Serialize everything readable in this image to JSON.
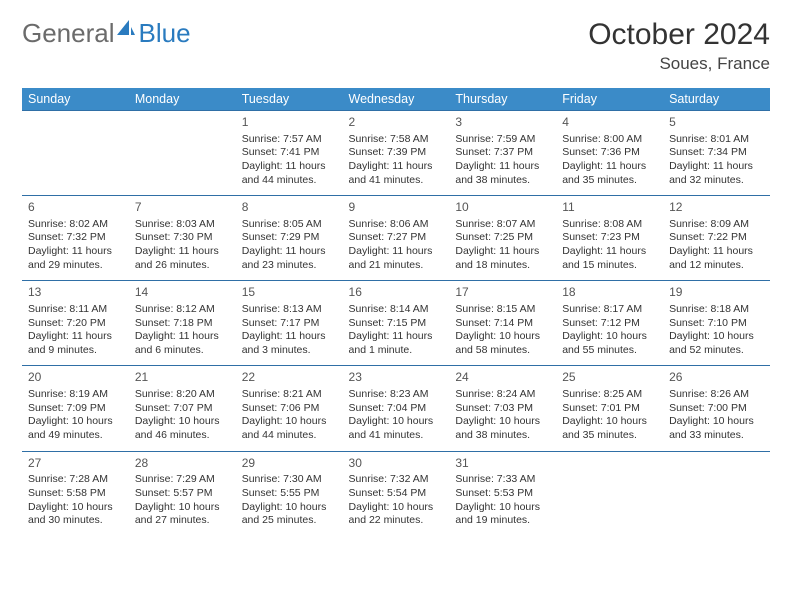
{
  "brand": {
    "part1": "General",
    "part2": "Blue"
  },
  "title": "October 2024",
  "location": "Soues, France",
  "colors": {
    "header_bg": "#3b8bc8",
    "header_text": "#ffffff",
    "row_border": "#2f6fa6",
    "logo_gray": "#6b6b6b",
    "logo_blue": "#2a7bbf"
  },
  "daynames": [
    "Sunday",
    "Monday",
    "Tuesday",
    "Wednesday",
    "Thursday",
    "Friday",
    "Saturday"
  ],
  "weeks": [
    [
      {
        "n": "",
        "sr": "",
        "ss": "",
        "dl": ""
      },
      {
        "n": "",
        "sr": "",
        "ss": "",
        "dl": ""
      },
      {
        "n": "1",
        "sr": "Sunrise: 7:57 AM",
        "ss": "Sunset: 7:41 PM",
        "dl": "Daylight: 11 hours and 44 minutes."
      },
      {
        "n": "2",
        "sr": "Sunrise: 7:58 AM",
        "ss": "Sunset: 7:39 PM",
        "dl": "Daylight: 11 hours and 41 minutes."
      },
      {
        "n": "3",
        "sr": "Sunrise: 7:59 AM",
        "ss": "Sunset: 7:37 PM",
        "dl": "Daylight: 11 hours and 38 minutes."
      },
      {
        "n": "4",
        "sr": "Sunrise: 8:00 AM",
        "ss": "Sunset: 7:36 PM",
        "dl": "Daylight: 11 hours and 35 minutes."
      },
      {
        "n": "5",
        "sr": "Sunrise: 8:01 AM",
        "ss": "Sunset: 7:34 PM",
        "dl": "Daylight: 11 hours and 32 minutes."
      }
    ],
    [
      {
        "n": "6",
        "sr": "Sunrise: 8:02 AM",
        "ss": "Sunset: 7:32 PM",
        "dl": "Daylight: 11 hours and 29 minutes."
      },
      {
        "n": "7",
        "sr": "Sunrise: 8:03 AM",
        "ss": "Sunset: 7:30 PM",
        "dl": "Daylight: 11 hours and 26 minutes."
      },
      {
        "n": "8",
        "sr": "Sunrise: 8:05 AM",
        "ss": "Sunset: 7:29 PM",
        "dl": "Daylight: 11 hours and 23 minutes."
      },
      {
        "n": "9",
        "sr": "Sunrise: 8:06 AM",
        "ss": "Sunset: 7:27 PM",
        "dl": "Daylight: 11 hours and 21 minutes."
      },
      {
        "n": "10",
        "sr": "Sunrise: 8:07 AM",
        "ss": "Sunset: 7:25 PM",
        "dl": "Daylight: 11 hours and 18 minutes."
      },
      {
        "n": "11",
        "sr": "Sunrise: 8:08 AM",
        "ss": "Sunset: 7:23 PM",
        "dl": "Daylight: 11 hours and 15 minutes."
      },
      {
        "n": "12",
        "sr": "Sunrise: 8:09 AM",
        "ss": "Sunset: 7:22 PM",
        "dl": "Daylight: 11 hours and 12 minutes."
      }
    ],
    [
      {
        "n": "13",
        "sr": "Sunrise: 8:11 AM",
        "ss": "Sunset: 7:20 PM",
        "dl": "Daylight: 11 hours and 9 minutes."
      },
      {
        "n": "14",
        "sr": "Sunrise: 8:12 AM",
        "ss": "Sunset: 7:18 PM",
        "dl": "Daylight: 11 hours and 6 minutes."
      },
      {
        "n": "15",
        "sr": "Sunrise: 8:13 AM",
        "ss": "Sunset: 7:17 PM",
        "dl": "Daylight: 11 hours and 3 minutes."
      },
      {
        "n": "16",
        "sr": "Sunrise: 8:14 AM",
        "ss": "Sunset: 7:15 PM",
        "dl": "Daylight: 11 hours and 1 minute."
      },
      {
        "n": "17",
        "sr": "Sunrise: 8:15 AM",
        "ss": "Sunset: 7:14 PM",
        "dl": "Daylight: 10 hours and 58 minutes."
      },
      {
        "n": "18",
        "sr": "Sunrise: 8:17 AM",
        "ss": "Sunset: 7:12 PM",
        "dl": "Daylight: 10 hours and 55 minutes."
      },
      {
        "n": "19",
        "sr": "Sunrise: 8:18 AM",
        "ss": "Sunset: 7:10 PM",
        "dl": "Daylight: 10 hours and 52 minutes."
      }
    ],
    [
      {
        "n": "20",
        "sr": "Sunrise: 8:19 AM",
        "ss": "Sunset: 7:09 PM",
        "dl": "Daylight: 10 hours and 49 minutes."
      },
      {
        "n": "21",
        "sr": "Sunrise: 8:20 AM",
        "ss": "Sunset: 7:07 PM",
        "dl": "Daylight: 10 hours and 46 minutes."
      },
      {
        "n": "22",
        "sr": "Sunrise: 8:21 AM",
        "ss": "Sunset: 7:06 PM",
        "dl": "Daylight: 10 hours and 44 minutes."
      },
      {
        "n": "23",
        "sr": "Sunrise: 8:23 AM",
        "ss": "Sunset: 7:04 PM",
        "dl": "Daylight: 10 hours and 41 minutes."
      },
      {
        "n": "24",
        "sr": "Sunrise: 8:24 AM",
        "ss": "Sunset: 7:03 PM",
        "dl": "Daylight: 10 hours and 38 minutes."
      },
      {
        "n": "25",
        "sr": "Sunrise: 8:25 AM",
        "ss": "Sunset: 7:01 PM",
        "dl": "Daylight: 10 hours and 35 minutes."
      },
      {
        "n": "26",
        "sr": "Sunrise: 8:26 AM",
        "ss": "Sunset: 7:00 PM",
        "dl": "Daylight: 10 hours and 33 minutes."
      }
    ],
    [
      {
        "n": "27",
        "sr": "Sunrise: 7:28 AM",
        "ss": "Sunset: 5:58 PM",
        "dl": "Daylight: 10 hours and 30 minutes."
      },
      {
        "n": "28",
        "sr": "Sunrise: 7:29 AM",
        "ss": "Sunset: 5:57 PM",
        "dl": "Daylight: 10 hours and 27 minutes."
      },
      {
        "n": "29",
        "sr": "Sunrise: 7:30 AM",
        "ss": "Sunset: 5:55 PM",
        "dl": "Daylight: 10 hours and 25 minutes."
      },
      {
        "n": "30",
        "sr": "Sunrise: 7:32 AM",
        "ss": "Sunset: 5:54 PM",
        "dl": "Daylight: 10 hours and 22 minutes."
      },
      {
        "n": "31",
        "sr": "Sunrise: 7:33 AM",
        "ss": "Sunset: 5:53 PM",
        "dl": "Daylight: 10 hours and 19 minutes."
      },
      {
        "n": "",
        "sr": "",
        "ss": "",
        "dl": ""
      },
      {
        "n": "",
        "sr": "",
        "ss": "",
        "dl": ""
      }
    ]
  ]
}
